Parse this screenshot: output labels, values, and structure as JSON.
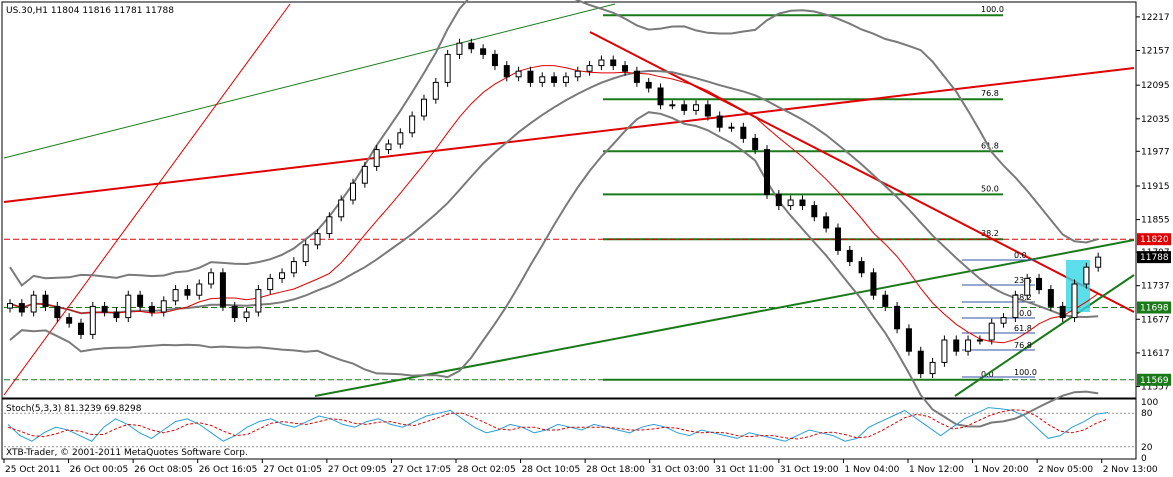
{
  "chart_data": [
    {
      "type": "candlestick",
      "title": "US.30,H1  11804 11816 11781 11788",
      "symbol": "US.30,H1",
      "ohlc_header": {
        "open": 11804,
        "high": 11816,
        "low": 11781,
        "close": 11788
      },
      "ylim": [
        11540,
        12240
      ],
      "y_ticks": [
        "12217",
        "12157",
        "12095",
        "12035",
        "11977",
        "11915",
        "11855",
        "11797",
        "11737",
        "11677",
        "11617",
        "11557"
      ],
      "x_ticks": [
        "25 Oct 2011",
        "26 Oct 00:05",
        "26 Oct 08:05",
        "26 Oct 16:05",
        "27 Oct 01:05",
        "27 Oct 09:05",
        "27 Oct 17:05",
        "28 Oct 02:05",
        "28 Oct 10:05",
        "28 Oct 18:00",
        "31 Oct 03:00",
        "31 Oct 11:00",
        "31 Oct 19:00",
        "1 Nov 04:00",
        "1 Nov 12:00",
        "1 Nov 20:00",
        "2 Nov 05:00",
        "2 Nov 13:00"
      ],
      "price_tags": [
        {
          "label": "11820",
          "color": "#e00000"
        },
        {
          "label": "11788",
          "color": "#000000"
        },
        {
          "label": "11698",
          "color": "#1a7a1a"
        },
        {
          "label": "11569",
          "color": "#1a7a1a"
        }
      ],
      "fib_levels_large": [
        "100.0",
        "76.8",
        "61.8",
        "50.0",
        "38.2",
        "0.0"
      ],
      "fib_levels_small": [
        "0.0",
        "23.6",
        "38.2",
        "50.0",
        "61.8",
        "76.8",
        "100.0"
      ],
      "copyright": "XTB-Trader, © 2001-2011 MetaQuotes Software Corp.",
      "colors": {
        "bull": "#ffffff",
        "bear": "#000000",
        "bollinger": "#7a7a7a",
        "ma": "#e00000",
        "fib": "#1a7a1a",
        "channel_red": "#e00000"
      },
      "closes": [
        11705,
        11690,
        11720,
        11700,
        11680,
        11670,
        11650,
        11700,
        11690,
        11680,
        11720,
        11700,
        11690,
        11710,
        11730,
        11720,
        11740,
        11760,
        11700,
        11680,
        11690,
        11730,
        11750,
        11760,
        11780,
        11810,
        11830,
        11860,
        11890,
        11920,
        11950,
        11980,
        11990,
        12010,
        12040,
        12070,
        12100,
        12150,
        12170,
        12160,
        12150,
        12130,
        12110,
        12120,
        12100,
        12110,
        12100,
        12110,
        12120,
        12130,
        12140,
        12130,
        12120,
        12100,
        12090,
        12060,
        12060,
        12050,
        12060,
        12040,
        12020,
        12020,
        12000,
        11980,
        11900,
        11880,
        11890,
        11880,
        11860,
        11840,
        11800,
        11780,
        11760,
        11720,
        11700,
        11660,
        11620,
        11580,
        11600,
        11640,
        11620,
        11640,
        11640,
        11670,
        11680,
        11720,
        11750,
        11730,
        11700,
        11680,
        11740,
        11770,
        11788
      ]
    },
    {
      "type": "line",
      "title": "Stoch(5,3,3) 81.3239 69.8298",
      "ylim": [
        0,
        100
      ],
      "y_ticks": [
        "100",
        "80",
        "20",
        "0"
      ],
      "series": [
        {
          "name": "Stoch(5,3,3)",
          "color": "#2a9fd6",
          "values": [
            60,
            40,
            30,
            45,
            55,
            50,
            40,
            30,
            55,
            70,
            60,
            45,
            35,
            50,
            65,
            70,
            60,
            45,
            30,
            40,
            55,
            65,
            70,
            60,
            55,
            65,
            75,
            70,
            60,
            55,
            65,
            70,
            60,
            55,
            65,
            75,
            80,
            85,
            70,
            55,
            45,
            50,
            60,
            55,
            45,
            50,
            60,
            55,
            50,
            60,
            55,
            50,
            45,
            55,
            60,
            55,
            45,
            40,
            50,
            45,
            40,
            35,
            45,
            40,
            35,
            30,
            40,
            50,
            45,
            40,
            30,
            35,
            55,
            65,
            75,
            85,
            70,
            55,
            40,
            55,
            70,
            80,
            90,
            88,
            85,
            75,
            55,
            35,
            40,
            55,
            65,
            78,
            81.3239
          ]
        },
        {
          "name": "Signal",
          "color": "#e00000",
          "values": [
            55,
            48,
            40,
            38,
            43,
            50,
            48,
            42,
            42,
            52,
            60,
            58,
            50,
            45,
            50,
            60,
            63,
            58,
            48,
            40,
            42,
            52,
            62,
            65,
            62,
            60,
            65,
            70,
            68,
            62,
            60,
            64,
            65,
            60,
            58,
            65,
            72,
            80,
            80,
            72,
            62,
            52,
            50,
            55,
            55,
            50,
            50,
            55,
            55,
            55,
            55,
            53,
            50,
            50,
            52,
            55,
            53,
            48,
            45,
            46,
            45,
            40,
            38,
            40,
            40,
            36,
            34,
            38,
            45,
            46,
            42,
            36,
            38,
            48,
            60,
            72,
            78,
            74,
            62,
            52,
            55,
            65,
            75,
            82,
            86,
            85,
            75,
            60,
            48,
            45,
            50,
            62,
            69.8298
          ]
        }
      ]
    }
  ]
}
